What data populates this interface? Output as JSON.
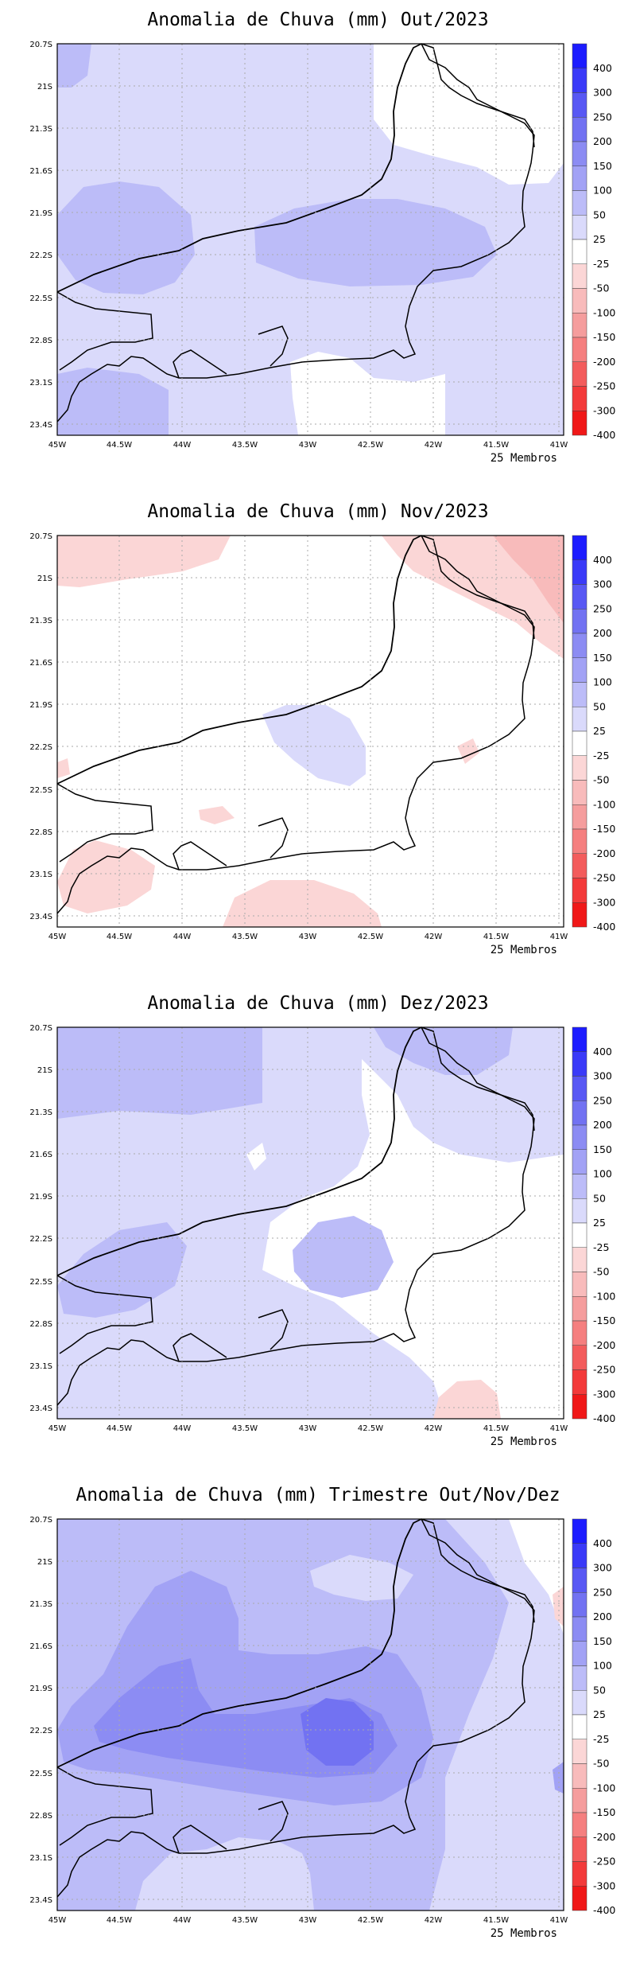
{
  "lat_labels": [
    "20.7S",
    "21S",
    "21.3S",
    "21.6S",
    "21.9S",
    "22.2S",
    "22.5S",
    "22.8S",
    "23.1S",
    "23.4S"
  ],
  "lon_labels": [
    "45W",
    "44.5W",
    "44W",
    "43.5W",
    "43W",
    "42.5W",
    "42W",
    "41.5W",
    "41W"
  ],
  "colorbar": {
    "labels": [
      "400",
      "300",
      "250",
      "200",
      "150",
      "100",
      "50",
      "25",
      "-25",
      "-50",
      "-100",
      "-150",
      "-200",
      "-250",
      "-300",
      "-400"
    ],
    "colors": [
      "#1c1cff",
      "#3a3af8",
      "#5858f4",
      "#7272f2",
      "#8c8cf3",
      "#a2a2f5",
      "#bcbcf8",
      "#dadafb",
      "#ffffff",
      "#fbd6d6",
      "#f8bbbb",
      "#f59d9d",
      "#f57f7f",
      "#f35c5c",
      "#f33a3a",
      "#f01818"
    ]
  },
  "panels": [
    {
      "title": "Anomalia de Chuva (mm) Out/2023",
      "members": "25 Membros"
    },
    {
      "title": "Anomalia de Chuva (mm) Nov/2023",
      "members": "25 Membros"
    },
    {
      "title": "Anomalia de Chuva (mm) Dez/2023",
      "members": "25 Membros"
    },
    {
      "title": "Anomalia de Chuva (mm) Trimestre Out/Nov/Dez",
      "members": "25 Membros"
    }
  ]
}
